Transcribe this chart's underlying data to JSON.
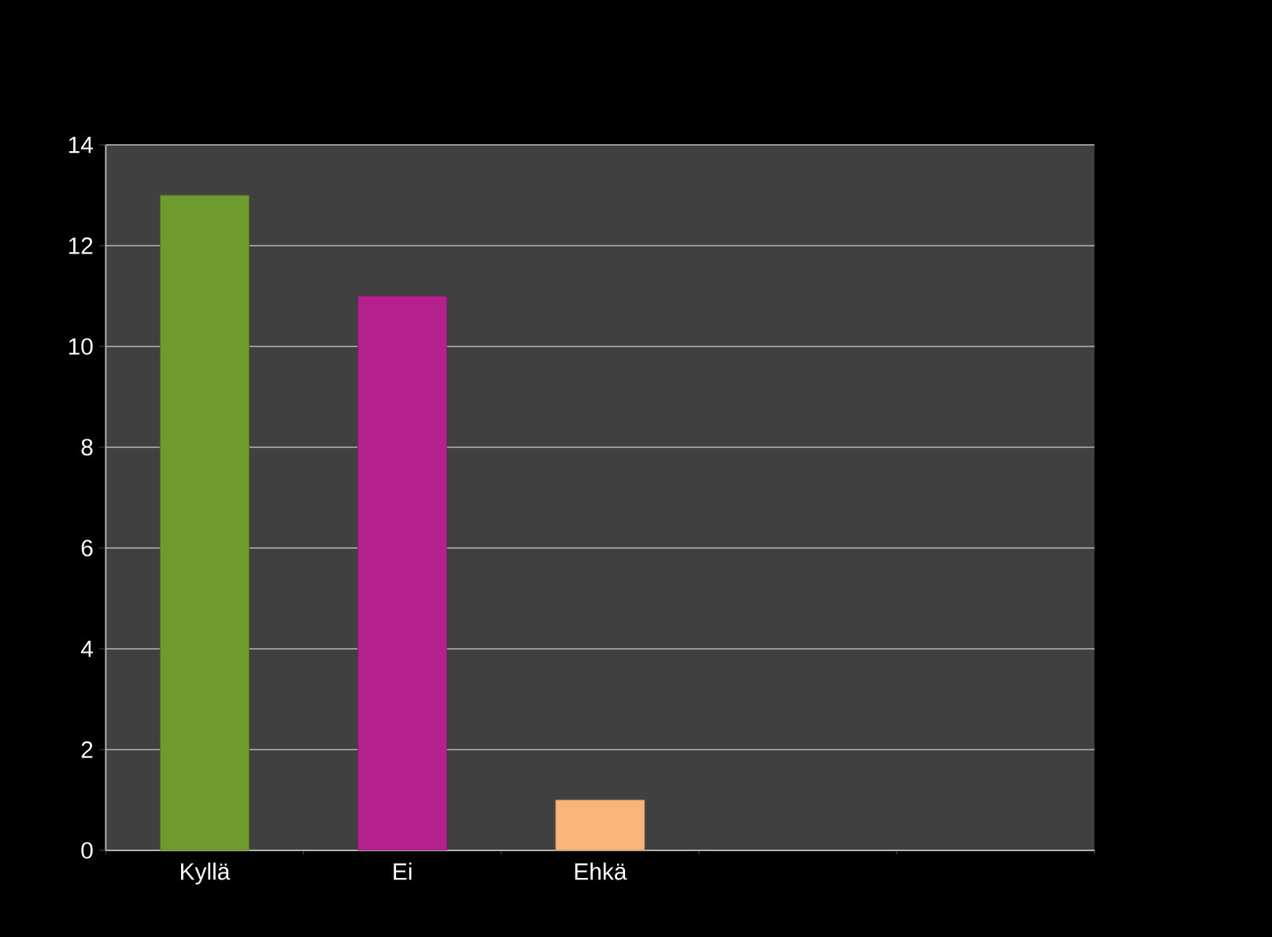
{
  "chart_data": {
    "type": "bar",
    "categories": [
      "Kyllä",
      "Ei",
      "Ehkä",
      null,
      null
    ],
    "values": [
      13,
      11,
      1,
      null,
      null
    ],
    "colors": [
      "#6e9a2e",
      "#b5208f",
      "#f9b47a",
      "#808080",
      "#808080"
    ],
    "ylim": [
      0,
      14
    ],
    "yticks": [
      0,
      2,
      4,
      6,
      8,
      10,
      12,
      14
    ],
    "grid": "y"
  }
}
